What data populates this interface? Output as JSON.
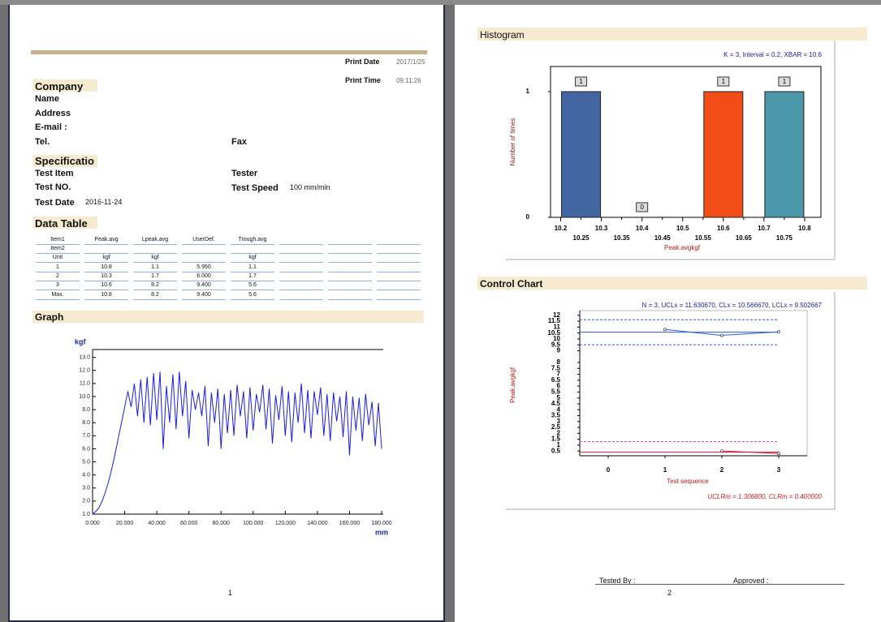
{
  "page1": {
    "print_date_label": "Print Date",
    "print_date": "2017/1/25",
    "print_time_label": "Print Time",
    "print_time": "09:11:26",
    "company": {
      "title": "Company",
      "fields": [
        "Name",
        "Address",
        "E-mail :",
        "Tel."
      ],
      "fax": "Fax"
    },
    "specification": {
      "title": "Specificatio",
      "test_item": "Test Item",
      "tester": "Tester",
      "test_no": "Test NO.",
      "test_speed": "Test Speed",
      "test_speed_value": "100 mm/min",
      "test_date": "Test Date",
      "test_date_value": "2016-11-24"
    },
    "data_table": {
      "title": "Data Table",
      "rows": [
        [
          "Item1",
          "Peak.avg",
          "Lpeak.avg",
          "UserDef.",
          "Trough.avg"
        ],
        [
          "Item2"
        ],
        [
          "Unit",
          "kgf",
          "kgf",
          null,
          "kgf"
        ],
        [
          "1",
          "10.8",
          "1.1",
          "5.950",
          "1.1"
        ],
        [
          "2",
          "10.3",
          "1.7",
          "6.000",
          "1.7"
        ],
        [
          "3",
          "10.6",
          "8.2",
          "9.400",
          "5.6"
        ],
        [
          "Max.",
          "10.8",
          "8.2",
          "9.400",
          "5.6"
        ]
      ]
    },
    "graph": {
      "type": "line",
      "title": "Graph",
      "y_label": "kgf",
      "x_label": "mm",
      "color": "#1c1ce0",
      "x": [
        0,
        2,
        4,
        6,
        8,
        10,
        12,
        14,
        16,
        18,
        20,
        22,
        24,
        26,
        28,
        30,
        32,
        34,
        36,
        38,
        40,
        42,
        44,
        46,
        48,
        50,
        52,
        54,
        56,
        58,
        60,
        62,
        64,
        66,
        68,
        70,
        72,
        74,
        76,
        78,
        80,
        82,
        84,
        86,
        88,
        90,
        92,
        94,
        96,
        98,
        100,
        102,
        104,
        106,
        108,
        110,
        112,
        114,
        116,
        118,
        120,
        122,
        124,
        126,
        128,
        130,
        132,
        134,
        136,
        138,
        140,
        142,
        144,
        146,
        148,
        150,
        152,
        154,
        156,
        158,
        160,
        162,
        164,
        166,
        168,
        170,
        172,
        174,
        176,
        178,
        180
      ],
      "values": [
        1.0,
        1.2,
        1.5,
        2.0,
        2.7,
        3.5,
        4.5,
        5.6,
        6.8,
        8.0,
        9.2,
        10.4,
        9.2,
        11.0,
        8.5,
        11.3,
        8.0,
        11.5,
        7.8,
        11.8,
        8.2,
        11.9,
        6.0,
        10.8,
        8.0,
        11.7,
        7.5,
        11.9,
        8.5,
        11.2,
        6.8,
        10.5,
        9.0,
        10.3,
        8.5,
        10.8,
        6.2,
        10.3,
        8.0,
        10.6,
        6.0,
        10.2,
        7.2,
        10.5,
        7.0,
        10.9,
        8.5,
        10.4,
        6.8,
        10.7,
        7.4,
        10.2,
        8.8,
        10.9,
        7.5,
        10.6,
        6.4,
        10.1,
        8.2,
        10.8,
        7.0,
        10.4,
        6.5,
        10.3,
        8.0,
        11.0,
        7.2,
        10.5,
        6.8,
        10.4,
        8.6,
        10.7,
        7.0,
        10.2,
        6.6,
        10.3,
        8.1,
        10.0,
        6.9,
        10.4,
        5.5,
        10.0,
        7.4,
        9.9,
        6.6,
        10.2,
        7.8,
        9.6,
        6.2,
        9.5,
        6.0
      ],
      "xlim": [
        0,
        181
      ],
      "ylim": [
        1,
        13.6
      ],
      "xticks": [
        {
          "value": 0,
          "label": "0.000"
        },
        {
          "value": 20,
          "label": "20.000"
        },
        {
          "value": 40,
          "label": "40.000"
        },
        {
          "value": 60,
          "label": "60.000"
        },
        {
          "value": 80,
          "label": "80.000"
        },
        {
          "value": 100,
          "label": "100.000"
        },
        {
          "value": 120,
          "label": "120.000"
        },
        {
          "value": 140,
          "label": "140.000"
        },
        {
          "value": 160,
          "label": "160.000"
        },
        {
          "value": 180,
          "label": "180.000"
        }
      ],
      "yticks": [
        {
          "value": 1,
          "label": "1.0"
        },
        {
          "value": 2,
          "label": "2.0"
        },
        {
          "value": 3,
          "label": "3.0"
        },
        {
          "value": 4,
          "label": "4.0"
        },
        {
          "value": 5,
          "label": "5.0"
        },
        {
          "value": 6,
          "label": "6.0"
        },
        {
          "value": 7,
          "label": "7.0"
        },
        {
          "value": 8,
          "label": "8.0"
        },
        {
          "value": 9,
          "label": "9.0"
        },
        {
          "value": 10,
          "label": "10.0"
        },
        {
          "value": 11,
          "label": "11.0"
        },
        {
          "value": 12,
          "label": "12.0"
        },
        {
          "value": 13,
          "label": "13.0"
        }
      ]
    },
    "page_number": "1"
  },
  "page2": {
    "histogram": {
      "type": "histogram",
      "title": "Histogram",
      "annotation": "K = 3, Interval = 0.2, XBAR = 10.6",
      "y_label": "Number of times",
      "x_label": "Peak.avgkgf",
      "x": [
        10.25,
        10.4,
        10.6,
        10.75
      ],
      "values": [
        1,
        0,
        1,
        1
      ],
      "colors": [
        "#4365a1",
        "#808080",
        "#f24d17",
        "#4a98a9"
      ],
      "xlim": [
        10.175,
        10.84
      ],
      "ylim": [
        0,
        1.2
      ],
      "xticks": [
        10.2,
        10.25,
        10.3,
        10.35,
        10.4,
        10.45,
        10.5,
        10.55,
        10.6,
        10.65,
        10.7,
        10.75,
        10.8
      ],
      "yticks": [
        0,
        1
      ]
    },
    "control_chart": {
      "type": "control",
      "title": "Control Chart",
      "annotation": "N = 3, UCLx = 11.630670, CLx = 10.566670, LCLx = 9.502667",
      "range_annotation": "UCLRm = 1.306800, CLRm = 0.400000",
      "y_label": "Peak.avgkgf",
      "x_label": "Test sequence",
      "xlim": [
        -0.5,
        3.5
      ],
      "xticks": [
        0,
        1,
        2,
        3
      ],
      "ylim": [
        0.1,
        12.4
      ],
      "yticks": [
        0.5,
        1,
        1.5,
        2,
        2.5,
        3,
        3.5,
        4,
        4.5,
        5,
        5.5,
        6,
        6.5,
        7,
        7.5,
        8,
        9,
        9.5,
        10,
        10.5,
        11,
        11.5,
        12
      ],
      "x_series": {
        "x": [
          1,
          2,
          3
        ],
        "values": [
          10.8,
          10.3,
          10.6
        ],
        "color": "#2a5bd7"
      },
      "range_series": {
        "x": [
          2,
          3
        ],
        "values": [
          0.5,
          0.3
        ],
        "color": "#e0103a"
      },
      "limits": {
        "ucl": 11.63067,
        "cl": 10.56667,
        "lcl": 9.502667,
        "uclr": 1.3068,
        "clr": 0.4
      },
      "uclr_color": "#e040d0"
    },
    "footer": {
      "tested_by": "Tested By :",
      "approved": "Approved :",
      "page_number": "2"
    }
  }
}
